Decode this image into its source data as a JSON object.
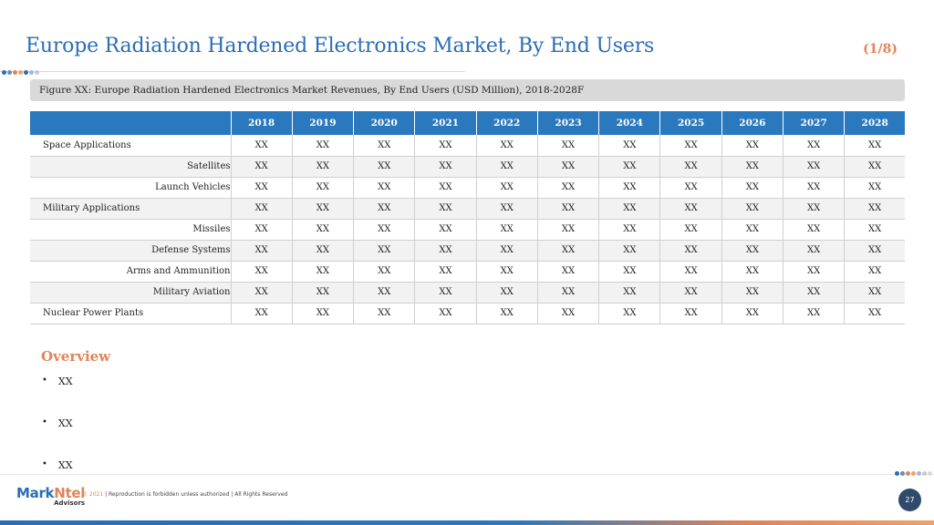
{
  "header": {
    "title": "Europe Radiation Hardened Electronics Market, By End Users",
    "page_counter": "(1/8)"
  },
  "figure": {
    "caption": "Figure XX: Europe Radiation Hardened Electronics Market Revenues, By End Users (USD Million), 2018-2028F"
  },
  "table": {
    "years": [
      "2018",
      "2019",
      "2020",
      "2021",
      "2022",
      "2023",
      "2024",
      "2025",
      "2026",
      "2027",
      "2028"
    ],
    "rows": [
      {
        "label": "Space Applications",
        "values": [
          "XX",
          "XX",
          "XX",
          "XX",
          "XX",
          "XX",
          "XX",
          "XX",
          "XX",
          "XX",
          "XX"
        ]
      },
      {
        "label": "Satellites",
        "values": [
          "XX",
          "XX",
          "XX",
          "XX",
          "XX",
          "XX",
          "XX",
          "XX",
          "XX",
          "XX",
          "XX"
        ]
      },
      {
        "label": "Launch Vehicles",
        "values": [
          "XX",
          "XX",
          "XX",
          "XX",
          "XX",
          "XX",
          "XX",
          "XX",
          "XX",
          "XX",
          "XX"
        ]
      },
      {
        "label": "Military Applications",
        "values": [
          "XX",
          "XX",
          "XX",
          "XX",
          "XX",
          "XX",
          "XX",
          "XX",
          "XX",
          "XX",
          "XX"
        ]
      },
      {
        "label": "Missiles",
        "values": [
          "XX",
          "XX",
          "XX",
          "XX",
          "XX",
          "XX",
          "XX",
          "XX",
          "XX",
          "XX",
          "XX"
        ]
      },
      {
        "label": "Defense Systems",
        "values": [
          "XX",
          "XX",
          "XX",
          "XX",
          "XX",
          "XX",
          "XX",
          "XX",
          "XX",
          "XX",
          "XX"
        ]
      },
      {
        "label": "Arms and Ammunition",
        "values": [
          "XX",
          "XX",
          "XX",
          "XX",
          "XX",
          "XX",
          "XX",
          "XX",
          "XX",
          "XX",
          "XX"
        ]
      },
      {
        "label": "Military Aviation",
        "values": [
          "XX",
          "XX",
          "XX",
          "XX",
          "XX",
          "XX",
          "XX",
          "XX",
          "XX",
          "XX",
          "XX"
        ]
      },
      {
        "label": "Nuclear Power Plants",
        "values": [
          "XX",
          "XX",
          "XX",
          "XX",
          "XX",
          "XX",
          "XX",
          "XX",
          "XX",
          "XX",
          "XX"
        ]
      }
    ]
  },
  "overview": {
    "title": "Overview",
    "bullets": [
      "XX",
      "XX",
      "XX"
    ]
  },
  "footer": {
    "logo_main_a": "Mark",
    "logo_main_b": "Ntel",
    "logo_sub": "Advisors",
    "copyright_year": "© 2021",
    "copyright_text": " | Reproduction is forbidden unless authorized | All Rights Reserved",
    "page_number": "27"
  },
  "colors": {
    "accent_blue": "#2a6db5",
    "accent_orange": "#e0845a",
    "table_header": "#2a78bd",
    "page_badge": "#2f4a6b"
  }
}
